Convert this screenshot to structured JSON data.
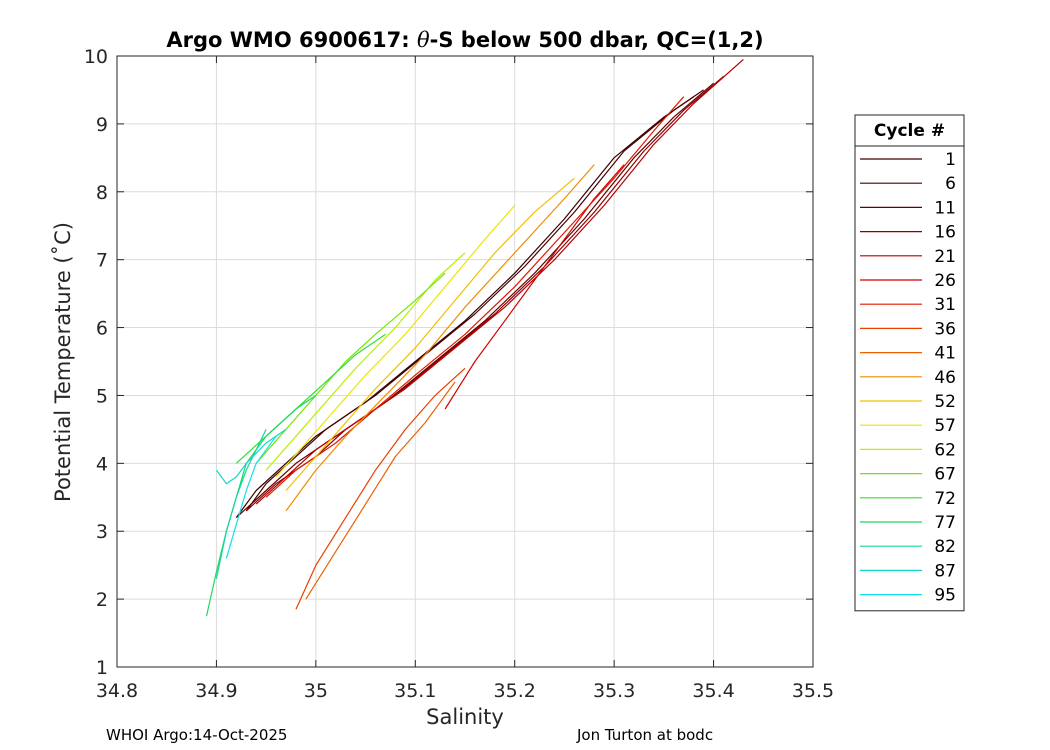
{
  "chart_data": {
    "type": "line",
    "title_prefix": "Argo WMO 6900617: ",
    "title_theta": "θ",
    "title_suffix": "-S below 500 dbar,  QC=(1,2)",
    "xlabel": "Salinity",
    "ylabel": "Potential Temperature (˚C)",
    "xlim": [
      34.8,
      35.5
    ],
    "ylim": [
      1,
      10
    ],
    "xticks": [
      34.8,
      34.9,
      35,
      35.1,
      35.2,
      35.3,
      35.4,
      35.5
    ],
    "xtick_labels": [
      "34.8",
      "34.9",
      "35",
      "35.1",
      "35.2",
      "35.3",
      "35.4",
      "35.5"
    ],
    "yticks": [
      1,
      2,
      3,
      4,
      5,
      6,
      7,
      8,
      9,
      10
    ],
    "ytick_labels": [
      "1",
      "2",
      "3",
      "4",
      "5",
      "6",
      "7",
      "8",
      "9",
      "10"
    ],
    "grid": true,
    "legend_title": "Cycle #",
    "legend_position": "outside-right",
    "series": [
      {
        "name": "1",
        "color": "#3a0000",
        "x": [
          34.92,
          34.94,
          34.97,
          35.0,
          35.05,
          35.1,
          35.15,
          35.2,
          35.25,
          35.3,
          35.35,
          35.38
        ],
        "y": [
          3.2,
          3.6,
          4.0,
          4.4,
          4.9,
          5.5,
          6.1,
          6.8,
          7.6,
          8.5,
          9.1,
          9.4
        ]
      },
      {
        "name": "6",
        "color": "#4a0000",
        "x": [
          34.93,
          34.95,
          34.98,
          35.01,
          35.06,
          35.11,
          35.16,
          35.21,
          35.26,
          35.31,
          35.36,
          35.39
        ],
        "y": [
          3.3,
          3.7,
          4.1,
          4.5,
          5.0,
          5.6,
          6.2,
          6.9,
          7.7,
          8.6,
          9.2,
          9.5
        ]
      },
      {
        "name": "11",
        "color": "#650000",
        "x": [
          34.92,
          34.95,
          34.98,
          35.02,
          35.07,
          35.12,
          35.17,
          35.22,
          35.27,
          35.32,
          35.36,
          35.4
        ],
        "y": [
          3.2,
          3.6,
          4.0,
          4.4,
          4.9,
          5.5,
          6.1,
          6.8,
          7.6,
          8.5,
          9.1,
          9.6
        ]
      },
      {
        "name": "16",
        "color": "#900000",
        "x": [
          34.93,
          34.96,
          35.0,
          35.03,
          35.08,
          35.13,
          35.18,
          35.23,
          35.28,
          35.33,
          35.37,
          35.41
        ],
        "y": [
          3.3,
          3.7,
          4.1,
          4.5,
          5.0,
          5.6,
          6.2,
          6.9,
          7.7,
          8.6,
          9.2,
          9.7
        ]
      },
      {
        "name": "21",
        "color": "#b80000",
        "x": [
          34.94,
          34.97,
          35.0,
          35.04,
          35.09,
          35.14,
          35.19,
          35.24,
          35.29,
          35.34,
          35.38,
          35.43
        ],
        "y": [
          3.4,
          3.8,
          4.2,
          4.6,
          5.1,
          5.7,
          6.3,
          7.0,
          7.8,
          8.7,
          9.3,
          9.95
        ]
      },
      {
        "name": "26",
        "color": "#d40000",
        "x": [
          35.13,
          35.16,
          35.19,
          35.22,
          35.25,
          35.28,
          35.31
        ],
        "y": [
          4.8,
          5.5,
          6.1,
          6.7,
          7.3,
          7.9,
          8.4
        ]
      },
      {
        "name": "31",
        "color": "#e01a00",
        "x": [
          34.95,
          34.98,
          35.02,
          35.06,
          35.1,
          35.15,
          35.2,
          35.25,
          35.3,
          35.34,
          35.37
        ],
        "y": [
          3.5,
          3.9,
          4.3,
          4.8,
          5.3,
          5.9,
          6.6,
          7.4,
          8.2,
          8.9,
          9.4
        ]
      },
      {
        "name": "36",
        "color": "#e84000",
        "x": [
          34.98,
          35.0,
          35.03,
          35.06,
          35.09,
          35.12,
          35.15
        ],
        "y": [
          1.85,
          2.5,
          3.2,
          3.9,
          4.5,
          5.0,
          5.4
        ]
      },
      {
        "name": "41",
        "color": "#ec6200",
        "x": [
          34.99,
          35.02,
          35.05,
          35.08,
          35.11,
          35.14
        ],
        "y": [
          2.0,
          2.7,
          3.4,
          4.1,
          4.6,
          5.2
        ]
      },
      {
        "name": "46",
        "color": "#f08c00",
        "x": [
          34.97,
          35.0,
          35.03,
          35.07,
          35.11,
          35.15,
          35.2,
          35.25,
          35.28
        ],
        "y": [
          3.3,
          3.9,
          4.4,
          5.0,
          5.6,
          6.3,
          7.1,
          7.9,
          8.4
        ]
      },
      {
        "name": "52",
        "color": "#f0c000",
        "x": [
          34.97,
          35.0,
          35.03,
          35.06,
          35.1,
          35.14,
          35.18,
          35.22,
          35.26
        ],
        "y": [
          3.6,
          4.1,
          4.6,
          5.1,
          5.7,
          6.4,
          7.1,
          7.7,
          8.2
        ]
      },
      {
        "name": "57",
        "color": "#e8e800",
        "x": [
          34.96,
          34.99,
          35.02,
          35.05,
          35.09,
          35.13,
          35.17,
          35.2
        ],
        "y": [
          3.8,
          4.3,
          4.8,
          5.3,
          5.9,
          6.6,
          7.3,
          7.8
        ]
      },
      {
        "name": "62",
        "color": "#b8f000",
        "x": [
          34.95,
          34.98,
          35.01,
          35.04,
          35.08,
          35.12,
          35.15
        ],
        "y": [
          3.9,
          4.4,
          4.9,
          5.4,
          6.0,
          6.7,
          7.1
        ]
      },
      {
        "name": "67",
        "color": "#70e800",
        "x": [
          34.94,
          34.97,
          35.0,
          35.03,
          35.06,
          35.1,
          35.13
        ],
        "y": [
          4.0,
          4.5,
          5.0,
          5.5,
          5.9,
          6.4,
          6.8
        ]
      },
      {
        "name": "72",
        "color": "#30e030",
        "x": [
          34.92,
          34.95,
          34.98,
          35.01,
          35.04,
          35.07
        ],
        "y": [
          4.0,
          4.4,
          4.8,
          5.2,
          5.6,
          5.9
        ]
      },
      {
        "name": "77",
        "color": "#20d860",
        "x": [
          34.89,
          34.9,
          34.91,
          34.92,
          34.93,
          34.95,
          34.98,
          35.0
        ],
        "y": [
          1.75,
          2.4,
          3.0,
          3.5,
          4.0,
          4.4,
          4.8,
          5.0
        ]
      },
      {
        "name": "82",
        "color": "#10d8a0",
        "x": [
          34.9,
          34.91,
          34.92,
          34.93,
          34.94,
          34.95
        ],
        "y": [
          2.3,
          3.0,
          3.5,
          3.9,
          4.2,
          4.5
        ]
      },
      {
        "name": "87",
        "color": "#10d8c8",
        "x": [
          34.9,
          34.91,
          34.92,
          34.93,
          34.95,
          34.97
        ],
        "y": [
          3.9,
          3.7,
          3.8,
          4.0,
          4.3,
          4.5
        ]
      },
      {
        "name": "95",
        "color": "#10e0e8",
        "x": [
          34.91,
          34.92,
          34.93,
          34.94,
          34.96
        ],
        "y": [
          2.6,
          3.1,
          3.6,
          4.0,
          4.4
        ]
      }
    ]
  },
  "footer": {
    "left": "WHOI Argo:14-Oct-2025",
    "right": "Jon Turton at bodc"
  }
}
